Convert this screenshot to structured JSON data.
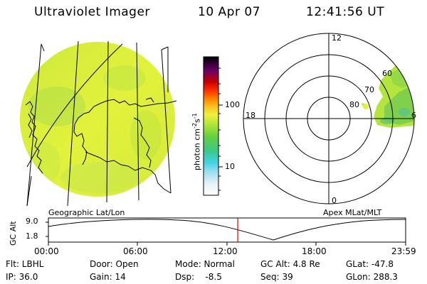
{
  "header": {
    "instrument": "Ultraviolet Imager",
    "date": "10 Apr 07",
    "time": "12:41:56 UT"
  },
  "colorbar": {
    "unit_main": "photon cm",
    "unit_exp1": "-2",
    "unit_s": "s",
    "unit_exp2": "-1",
    "ticks": [
      "100",
      "10"
    ]
  },
  "polar": {
    "hour_labels": [
      "12",
      "18",
      "6",
      "0"
    ],
    "lat_labels": [
      "60",
      "70",
      "80"
    ]
  },
  "panel_labels": {
    "left": "Geographic Lat/Lon",
    "right": "Apex MLat/MLT"
  },
  "altitude_plot": {
    "ylabel": "GC Alt",
    "yticks": [
      "9.0",
      "1.8"
    ],
    "xticks": [
      "00:00",
      "06:00",
      "12:00",
      "18:00",
      "23:59"
    ],
    "current_time_fraction": 0.53
  },
  "info": {
    "flt": "Flt: LBHL",
    "door": "Door: Open",
    "mode": "Mode: Normal",
    "gcalt": "GC Alt: 4.8 Re",
    "glat": "GLat: -47.8",
    "ip": "IP: 36.0",
    "gain": "Gain: 14",
    "dsp": "Dsp:    -8.5",
    "seq": "Seq: 39",
    "glon": "GLon: 288.3"
  },
  "colors": {
    "aurora_main": "#d8ee3a",
    "aurora_green": "#86d44a",
    "line": "#000000",
    "marker": "#e00000"
  }
}
